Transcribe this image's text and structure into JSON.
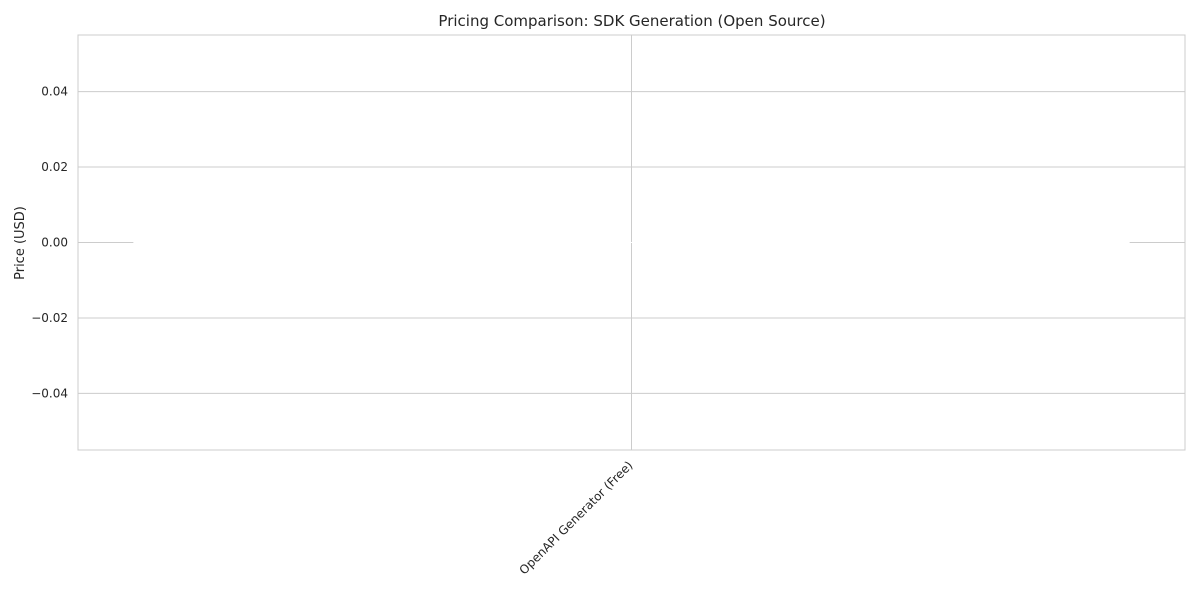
{
  "chart_data": {
    "type": "bar",
    "title": "Pricing Comparison: SDK Generation (Open Source)",
    "xlabel": "",
    "ylabel": "Price (USD)",
    "categories": [
      "OpenAPI Generator (Free)"
    ],
    "values": [
      0
    ],
    "ylim": [
      -0.055,
      0.055
    ],
    "yticks": [
      -0.04,
      -0.02,
      0.0,
      0.02,
      0.04
    ],
    "ytick_labels": [
      "−0.04",
      "−0.02",
      "0.00",
      "0.02",
      "0.04"
    ],
    "grid": true,
    "legend": "none",
    "colors": {
      "bar": "#ffffff",
      "grid": "#cccccc",
      "frame": "#cccccc",
      "text": "#262626"
    }
  }
}
